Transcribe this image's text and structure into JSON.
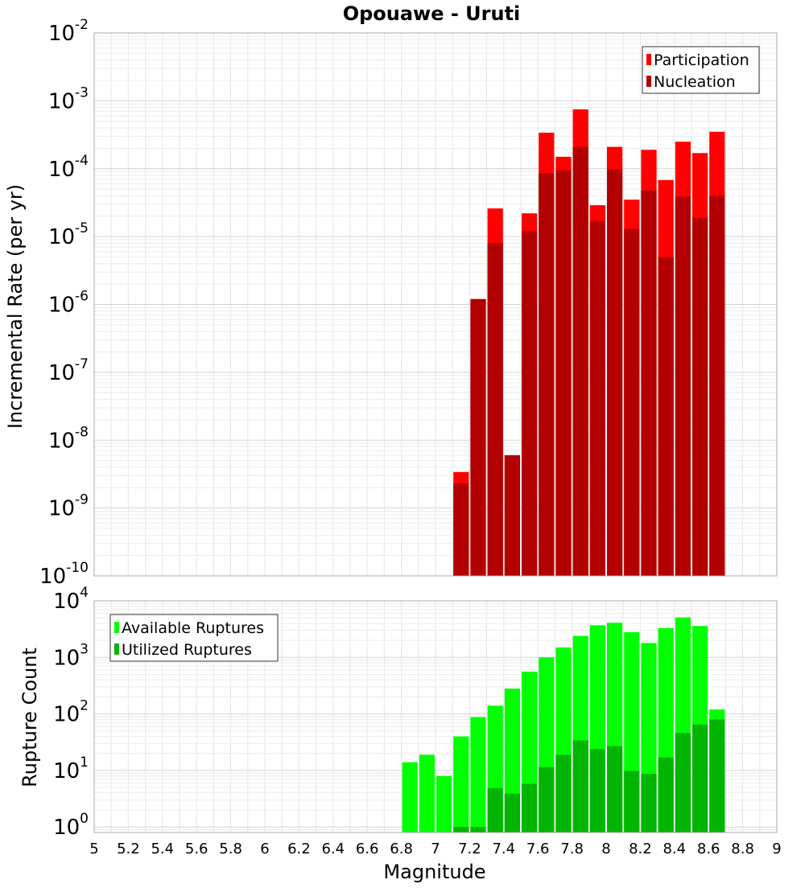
{
  "title": "Opouawe - Uruti",
  "chart_data": [
    {
      "type": "bar",
      "stacked_overlay": true,
      "xlabel": "Magnitude",
      "ylabel": "Incremental Rate (per yr)",
      "yscale": "log",
      "ylim": [
        1e-10,
        0.01
      ],
      "xlim": [
        5,
        9
      ],
      "bin_width": 0.1,
      "grid": true,
      "legend_position": "top-right",
      "y_ticks": [
        {
          "base": "10",
          "exp": "-10",
          "value": 1e-10
        },
        {
          "base": "10",
          "exp": "-9",
          "value": 1e-09
        },
        {
          "base": "10",
          "exp": "-8",
          "value": 1e-08
        },
        {
          "base": "10",
          "exp": "-7",
          "value": 1e-07
        },
        {
          "base": "10",
          "exp": "-6",
          "value": 1e-06
        },
        {
          "base": "10",
          "exp": "-5",
          "value": 1e-05
        },
        {
          "base": "10",
          "exp": "-4",
          "value": 0.0001
        },
        {
          "base": "10",
          "exp": "-3",
          "value": 0.001
        },
        {
          "base": "10",
          "exp": "-2",
          "value": 0.01
        }
      ],
      "x": [
        7.15,
        7.25,
        7.35,
        7.45,
        7.55,
        7.65,
        7.75,
        7.85,
        7.95,
        8.05,
        8.15,
        8.25,
        8.35,
        8.45,
        8.55,
        8.65
      ],
      "series": [
        {
          "name": "Participation",
          "color": "#ff0000",
          "values": [
            3.4e-09,
            1.2e-06,
            2.6e-05,
            6e-09,
            2.2e-05,
            0.00034,
            0.00015,
            0.00075,
            2.9e-05,
            0.00021,
            3.5e-05,
            0.00019,
            6.8e-05,
            0.00025,
            0.00017,
            0.00035
          ]
        },
        {
          "name": "Nucleation",
          "color": "#b20000",
          "values": [
            2.3e-09,
            1.2e-06,
            8e-06,
            6e-09,
            1.2e-05,
            8.5e-05,
            9.5e-05,
            0.00021,
            1.7e-05,
            9.8e-05,
            1.3e-05,
            4.8e-05,
            5e-06,
            3.9e-05,
            1.9e-05,
            4e-05
          ]
        }
      ]
    },
    {
      "type": "bar",
      "stacked_overlay": true,
      "xlabel": "Magnitude",
      "ylabel": "Rupture Count",
      "yscale": "log",
      "ylim": [
        0.8,
        10000
      ],
      "xlim": [
        5,
        9
      ],
      "bin_width": 0.1,
      "grid": true,
      "legend_position": "top-left",
      "y_ticks": [
        {
          "base": "10",
          "exp": "0",
          "value": 1
        },
        {
          "base": "10",
          "exp": "1",
          "value": 10
        },
        {
          "base": "10",
          "exp": "2",
          "value": 100
        },
        {
          "base": "10",
          "exp": "3",
          "value": 1000
        },
        {
          "base": "10",
          "exp": "4",
          "value": 10000
        }
      ],
      "x_ticks": [
        "5",
        "5.2",
        "5.4",
        "5.6",
        "5.8",
        "6",
        "6.2",
        "6.4",
        "6.6",
        "6.8",
        "7",
        "7.2",
        "7.4",
        "7.6",
        "7.8",
        "8",
        "8.2",
        "8.4",
        "8.6",
        "8.8",
        "9"
      ],
      "x": [
        6.85,
        6.95,
        7.05,
        7.15,
        7.25,
        7.35,
        7.45,
        7.55,
        7.65,
        7.75,
        7.85,
        7.95,
        8.05,
        8.15,
        8.25,
        8.35,
        8.45,
        8.55,
        8.65
      ],
      "series": [
        {
          "name": "Available Ruptures",
          "color": "#00ff00",
          "values": [
            14,
            19,
            8,
            40,
            88,
            140,
            280,
            560,
            1000,
            1500,
            2400,
            3700,
            4100,
            2800,
            1800,
            3300,
            5100,
            3600,
            120
          ]
        },
        {
          "name": "Utilized Ruptures",
          "color": "#00b400",
          "values": [
            null,
            null,
            null,
            1,
            1,
            4.9,
            3.9,
            5.8,
            11.5,
            19,
            34,
            24,
            27,
            9.8,
            8.7,
            17,
            46,
            65,
            80
          ]
        }
      ]
    }
  ]
}
